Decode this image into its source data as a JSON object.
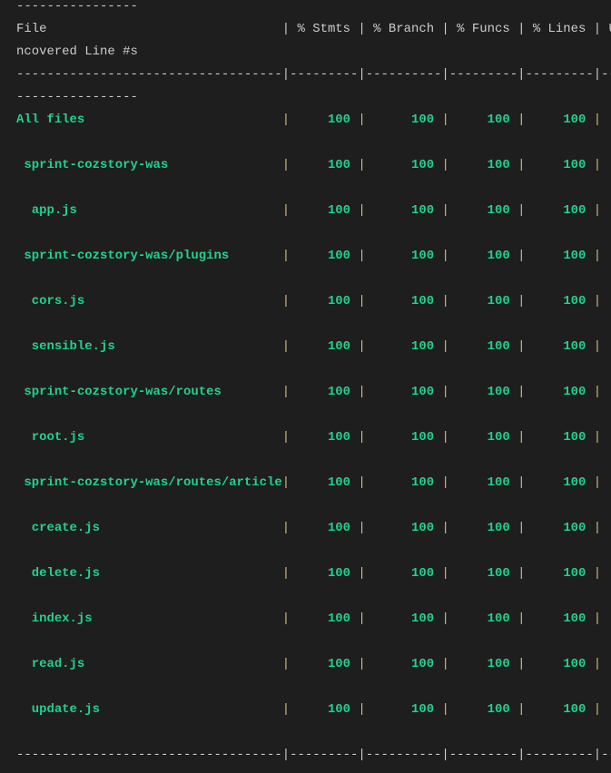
{
  "header": {
    "columns": [
      "File",
      "% Stmts",
      "% Branch",
      "% Funcs",
      "% Lines",
      "Uncovered Line #s"
    ]
  },
  "rows": [
    {
      "name": "All files",
      "indent": 0,
      "stmts": "100",
      "branch": "100",
      "funcs": "100",
      "lines": "100",
      "uncovered": ""
    },
    {
      "name": "sprint-cozstory-was",
      "indent": 1,
      "stmts": "100",
      "branch": "100",
      "funcs": "100",
      "lines": "100",
      "uncovered": ""
    },
    {
      "name": "app.js",
      "indent": 2,
      "stmts": "100",
      "branch": "100",
      "funcs": "100",
      "lines": "100",
      "uncovered": ""
    },
    {
      "name": "sprint-cozstory-was/plugins",
      "indent": 1,
      "stmts": "100",
      "branch": "100",
      "funcs": "100",
      "lines": "100",
      "uncovered": ""
    },
    {
      "name": "cors.js",
      "indent": 2,
      "stmts": "100",
      "branch": "100",
      "funcs": "100",
      "lines": "100",
      "uncovered": ""
    },
    {
      "name": "sensible.js",
      "indent": 2,
      "stmts": "100",
      "branch": "100",
      "funcs": "100",
      "lines": "100",
      "uncovered": ""
    },
    {
      "name": "sprint-cozstory-was/routes",
      "indent": 1,
      "stmts": "100",
      "branch": "100",
      "funcs": "100",
      "lines": "100",
      "uncovered": ""
    },
    {
      "name": "root.js",
      "indent": 2,
      "stmts": "100",
      "branch": "100",
      "funcs": "100",
      "lines": "100",
      "uncovered": ""
    },
    {
      "name": "sprint-cozstory-was/routes/article",
      "indent": 1,
      "stmts": "100",
      "branch": "100",
      "funcs": "100",
      "lines": "100",
      "uncovered": ""
    },
    {
      "name": "create.js",
      "indent": 2,
      "stmts": "100",
      "branch": "100",
      "funcs": "100",
      "lines": "100",
      "uncovered": ""
    },
    {
      "name": "delete.js",
      "indent": 2,
      "stmts": "100",
      "branch": "100",
      "funcs": "100",
      "lines": "100",
      "uncovered": ""
    },
    {
      "name": "index.js",
      "indent": 2,
      "stmts": "100",
      "branch": "100",
      "funcs": "100",
      "lines": "100",
      "uncovered": ""
    },
    {
      "name": "read.js",
      "indent": 2,
      "stmts": "100",
      "branch": "100",
      "funcs": "100",
      "lines": "100",
      "uncovered": ""
    },
    {
      "name": "update.js",
      "indent": 2,
      "stmts": "100",
      "branch": "100",
      "funcs": "100",
      "lines": "100",
      "uncovered": ""
    }
  ],
  "colors": {
    "background": "#1e1e1e",
    "text": "#cccccc",
    "covered": "#23d18b",
    "separator": "#d7ba7d"
  }
}
